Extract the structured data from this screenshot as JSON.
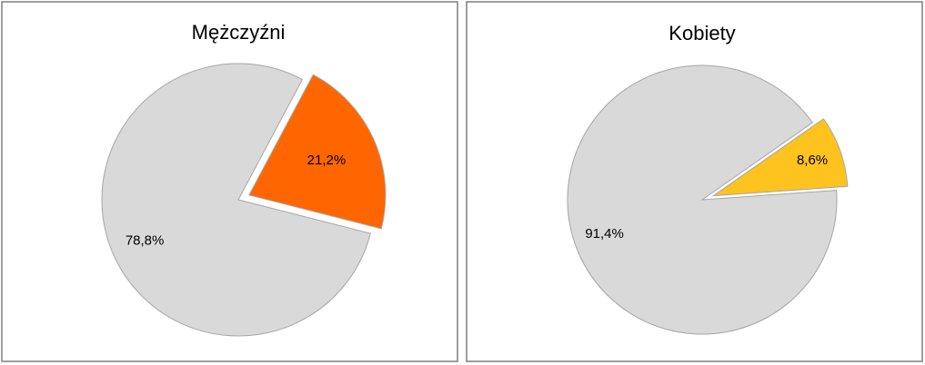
{
  "chart_data": [
    {
      "type": "pie",
      "title": "Mężczyźni",
      "values": [
        21.2,
        78.8
      ],
      "value_labels": [
        "21,2%",
        "78,8%"
      ],
      "colors": [
        "#ff6600",
        "#d9d9d9"
      ]
    },
    {
      "type": "pie",
      "title": "Kobiety",
      "values": [
        8.6,
        91.4
      ],
      "value_labels": [
        "8,6%",
        "91,4%"
      ],
      "colors": [
        "#ffc31f",
        "#d9d9d9"
      ]
    }
  ]
}
